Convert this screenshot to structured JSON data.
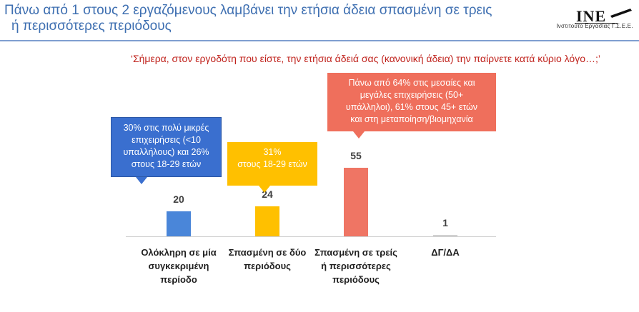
{
  "header": {
    "title_line1": "Πάνω από 1 στους 2 εργαζόμενους λαμβάνει την ετήσια άδεια σπασμένη σε τρεις",
    "title_line2": "ή περισσότερες περιόδους",
    "logo_text": "ΙΝΕ",
    "logo_subtitle": "Ινστιτούτο Εργασίας Γ.Σ.Ε.Ε."
  },
  "question": "‘Σήμερα, στον εργοδότη που είστε, την ετήσια άδειά σας (κανονική άδεια) την παίρνετε κατά κύριο λόγο…;’",
  "chart_data": {
    "type": "bar",
    "categories": [
      "Ολόκληρη σε μία συγκεκριμένη περίοδο",
      "Σπασμένη σε δύο περιόδους",
      "Σπασμένη σε τρείς ή περισσότερες περιόδους",
      "ΔΓ/ΔΑ"
    ],
    "category_lines": [
      [
        "Ολόκληρη σε μία",
        "συγκεκριμένη",
        "περίοδο"
      ],
      [
        "Σπασμένη σε δύο",
        "περιόδους"
      ],
      [
        "Σπασμένη σε τρείς",
        "ή περισσότερες",
        "περιόδους"
      ],
      [
        "ΔΓ/ΔΑ"
      ]
    ],
    "values": [
      20,
      24,
      55,
      1
    ],
    "colors": [
      "#4a86d9",
      "#ffc000",
      "#ef7564",
      "#d0d0d0"
    ],
    "ylim": [
      0,
      55
    ],
    "grid": false,
    "annotations": [
      {
        "lines": [
          "30% στις πολύ μικρές",
          "επιχειρήσεις (<10",
          "υπαλλήλους) και 26%",
          "στους 18-29 ετών"
        ],
        "color": "#3a6fcf"
      },
      {
        "lines": [
          "31%",
          "στους 18-29 ετών"
        ],
        "color": "#ffc000"
      },
      {
        "lines": [
          "Πάνω από 64% στις μεσαίες και",
          "μεγάλες επιχειρήσεις (50+",
          "υπάλληλοι), 61% στους 45+ ετών",
          "και στη μεταποίηση/βιομηχανία"
        ],
        "color": "#ef6f5c"
      }
    ]
  }
}
